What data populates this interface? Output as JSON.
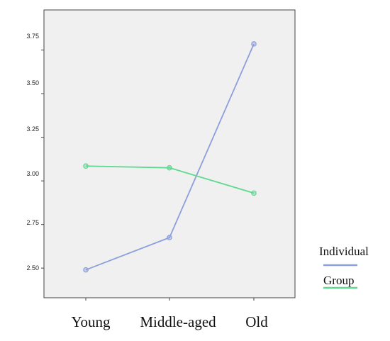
{
  "chart_data": {
    "type": "line",
    "categories": [
      "Young",
      "Middle-aged",
      "Old"
    ],
    "yticks": [
      "2.50",
      "2.75",
      "3.00",
      "3.25",
      "3.50",
      "3.75"
    ],
    "ylim": [
      2.33,
      3.98
    ],
    "grid": false,
    "legend_position": "right",
    "background": "#f0f0f0",
    "series": [
      {
        "name": "Individual",
        "color": "#8d9fdc",
        "values": [
          2.49,
          2.675,
          3.785
        ]
      },
      {
        "name": "Group",
        "color": "#5fd98f",
        "values": [
          3.085,
          3.075,
          2.93
        ]
      }
    ]
  }
}
